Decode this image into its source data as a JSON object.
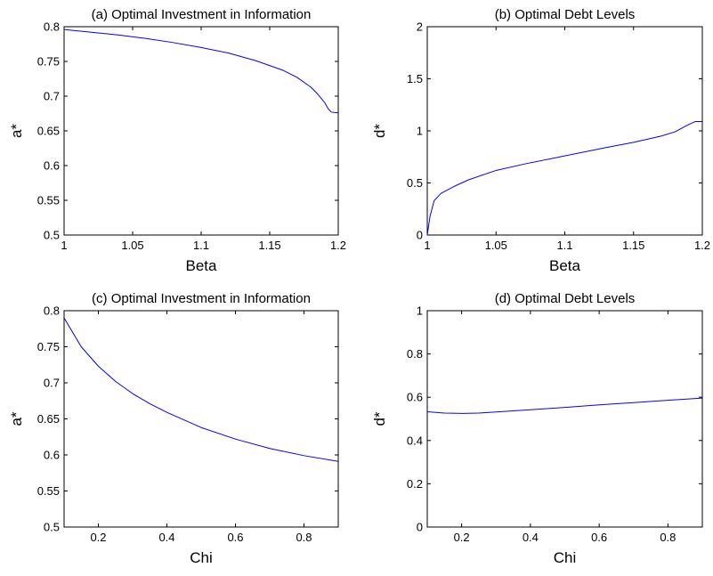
{
  "chart_data": [
    {
      "type": "line",
      "title": "(a) Optimal Investment in Information",
      "xlabel": "Beta",
      "ylabel": "a*",
      "xlim": [
        1,
        1.2
      ],
      "ylim": [
        0.5,
        0.8
      ],
      "xticks": [
        "1",
        "1.05",
        "1.1",
        "1.15",
        "1.2"
      ],
      "yticks": [
        "0.5",
        "0.55",
        "0.6",
        "0.65",
        "0.7",
        "0.75",
        "0.8"
      ],
      "grid": false,
      "line_color": "#0000ff",
      "series": [
        {
          "x": [
            1.0,
            1.02,
            1.04,
            1.06,
            1.08,
            1.1,
            1.12,
            1.14,
            1.16,
            1.17,
            1.18,
            1.185,
            1.19,
            1.193,
            1.195,
            1.2
          ],
          "values": [
            0.796,
            0.792,
            0.788,
            0.783,
            0.777,
            0.77,
            0.762,
            0.751,
            0.737,
            0.727,
            0.713,
            0.703,
            0.691,
            0.681,
            0.677,
            0.676
          ]
        }
      ]
    },
    {
      "type": "line",
      "title": "(b) Optimal Debt Levels",
      "xlabel": "Beta",
      "ylabel": "d*",
      "xlim": [
        1,
        1.2
      ],
      "ylim": [
        0,
        2
      ],
      "xticks": [
        "1",
        "1.05",
        "1.1",
        "1.15",
        "1.2"
      ],
      "yticks": [
        "0",
        "0.5",
        "1",
        "1.5",
        "2"
      ],
      "grid": false,
      "line_color": "#0000ff",
      "series": [
        {
          "x": [
            1.0,
            1.002,
            1.005,
            1.01,
            1.02,
            1.03,
            1.05,
            1.07,
            1.1,
            1.13,
            1.15,
            1.17,
            1.18,
            1.19,
            1.195,
            1.2
          ],
          "values": [
            0.0,
            0.18,
            0.33,
            0.4,
            0.47,
            0.53,
            0.62,
            0.68,
            0.76,
            0.84,
            0.89,
            0.95,
            0.99,
            1.06,
            1.09,
            1.09
          ]
        }
      ]
    },
    {
      "type": "line",
      "title": "(c) Optimal Investment in Information",
      "xlabel": "Chi",
      "ylabel": "a*",
      "xlim": [
        0.1,
        0.9
      ],
      "ylim": [
        0.5,
        0.8
      ],
      "xticks": [
        "0.2",
        "0.4",
        "0.6",
        "0.8"
      ],
      "yticks": [
        "0.5",
        "0.55",
        "0.6",
        "0.65",
        "0.7",
        "0.75",
        "0.8"
      ],
      "grid": false,
      "line_color": "#0000ff",
      "series": [
        {
          "x": [
            0.1,
            0.15,
            0.2,
            0.25,
            0.3,
            0.35,
            0.4,
            0.5,
            0.6,
            0.7,
            0.8,
            0.9
          ],
          "values": [
            0.79,
            0.75,
            0.723,
            0.702,
            0.685,
            0.671,
            0.659,
            0.638,
            0.622,
            0.609,
            0.599,
            0.591
          ]
        }
      ]
    },
    {
      "type": "line",
      "title": "(d) Optimal Debt Levels",
      "xlabel": "Chi",
      "ylabel": "d*",
      "xlim": [
        0.1,
        0.9
      ],
      "ylim": [
        0,
        1
      ],
      "xticks": [
        "0.2",
        "0.4",
        "0.6",
        "0.8"
      ],
      "yticks": [
        "0",
        "0.2",
        "0.4",
        "0.6",
        "0.8",
        "1"
      ],
      "grid": false,
      "line_color": "#0000ff",
      "series": [
        {
          "x": [
            0.1,
            0.15,
            0.2,
            0.25,
            0.3,
            0.4,
            0.5,
            0.6,
            0.7,
            0.8,
            0.9
          ],
          "values": [
            0.533,
            0.527,
            0.525,
            0.527,
            0.532,
            0.542,
            0.553,
            0.565,
            0.575,
            0.586,
            0.596
          ]
        }
      ]
    }
  ]
}
